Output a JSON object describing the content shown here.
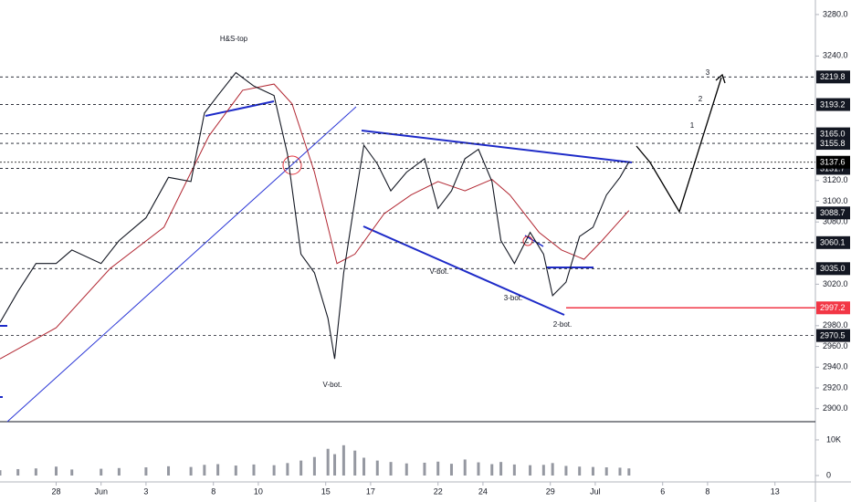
{
  "chart_data": {
    "type": "line",
    "annotations": [
      "H&S-top",
      "V-bot.",
      "V-bot.",
      "3-bot.",
      "2-bot.",
      "1",
      "2",
      "3"
    ],
    "x": [
      -2.5,
      -1.7,
      -0.9,
      0,
      0.7,
      2,
      2.8,
      4,
      5,
      6,
      6.6,
      7.2,
      8,
      8.8,
      9.7,
      10.3,
      10.9,
      11.5,
      12.1,
      12.4,
      12.8,
      13.3,
      13.7,
      14.3,
      14.9,
      15.6,
      16.4,
      17,
      17.6,
      18.2,
      18.8,
      19.4,
      19.8,
      20.4,
      21.1,
      21.7,
      22.1,
      22.7,
      23.3,
      23.9,
      24.5,
      25.1,
      25.5
    ],
    "series": [
      {
        "color": "#131722",
        "values": [
          2983,
          3013,
          3040,
          3040,
          3053,
          3040,
          3062,
          3084,
          3123,
          3119,
          3185,
          3202,
          3224,
          3211,
          3202,
          3145,
          3049,
          3031,
          2987,
          2948,
          3031,
          3101,
          3154,
          3136,
          3110,
          3128,
          3141,
          3093,
          3110,
          3141,
          3150,
          3119,
          3062,
          3040,
          3070,
          3049,
          3009,
          3022,
          3066,
          3075,
          3106,
          3123,
          3138
        ]
      }
    ],
    "moving_average": {
      "color": "#b22833",
      "x": [
        -2.5,
        0,
        2.4,
        4.8,
        6.8,
        8.3,
        9.7,
        10.5,
        11.5,
        12.5,
        13.3,
        14.6,
        15.8,
        17,
        18.2,
        19.4,
        20.2,
        21.5,
        22.5,
        23.5,
        24.3,
        25.5
      ],
      "values": [
        2948,
        2978,
        3035,
        3075,
        3163,
        3207,
        3213,
        3194,
        3128,
        3040,
        3049,
        3088,
        3106,
        3119,
        3110,
        3121,
        3106,
        3070,
        3053,
        3044,
        3062,
        3091
      ]
    },
    "volume": {
      "color": "#9598a1",
      "values": [
        1500,
        1800,
        2000,
        2500,
        1700,
        1900,
        2100,
        2300,
        2600,
        2400,
        3000,
        3200,
        2800,
        3100,
        2900,
        3500,
        4200,
        5200,
        7500,
        6000,
        8500,
        7000,
        5000,
        4200,
        3800,
        3400,
        3600,
        3900,
        3300,
        4500,
        3700,
        3200,
        3800,
        3100,
        2900,
        3000,
        3500,
        2700,
        2500,
        2400,
        2300,
        2200,
        2000
      ]
    },
    "xlim": [
      -2.5,
      33.8
    ],
    "xticks": [
      {
        "value": 0,
        "label": "28"
      },
      {
        "value": 2,
        "label": "Jun"
      },
      {
        "value": 4,
        "label": "3"
      },
      {
        "value": 7,
        "label": "8"
      },
      {
        "value": 9,
        "label": "10"
      },
      {
        "value": 12,
        "label": "15"
      },
      {
        "value": 14,
        "label": "17"
      },
      {
        "value": 17,
        "label": "22"
      },
      {
        "value": 19,
        "label": "24"
      },
      {
        "value": 22,
        "label": "29"
      },
      {
        "value": 24,
        "label": "Jul"
      },
      {
        "value": 27,
        "label": "6"
      },
      {
        "value": 29,
        "label": "8"
      },
      {
        "value": 32,
        "label": "13"
      }
    ],
    "ylim": [
      2894.5,
      3294
    ],
    "yticks": [
      {
        "value": 3280,
        "label": "3280.0"
      },
      {
        "value": 3240,
        "label": "3240.0"
      },
      {
        "value": 3120,
        "label": "3120.0"
      },
      {
        "value": 3100,
        "label": "3100.0"
      },
      {
        "value": 3080,
        "label": "3080.0"
      },
      {
        "value": 3020,
        "label": "3020.0"
      },
      {
        "value": 2980,
        "label": "2980.0"
      },
      {
        "value": 2960,
        "label": "2960.0"
      },
      {
        "value": 2940,
        "label": "2940.0"
      },
      {
        "value": 2920,
        "label": "2920.0"
      },
      {
        "value": 2900,
        "label": "2900.0"
      }
    ],
    "vlim": [
      0,
      14600
    ],
    "vticks": [
      {
        "value": 10000,
        "label": "10K"
      },
      0
    ],
    "price_levels": [
      3219.8,
      3193.2,
      {
        "value": 3165,
        "label": "3165.0"
      },
      3155.8,
      3131.7,
      3088.7,
      3060.1,
      {
        "value": 3035,
        "label": "3035.0"
      },
      2970.5
    ],
    "level_color": "#131722",
    "last_price": 3137.6,
    "last_color": "#000000",
    "stop_price": 2997.2,
    "stop_color": "#f23645"
  }
}
